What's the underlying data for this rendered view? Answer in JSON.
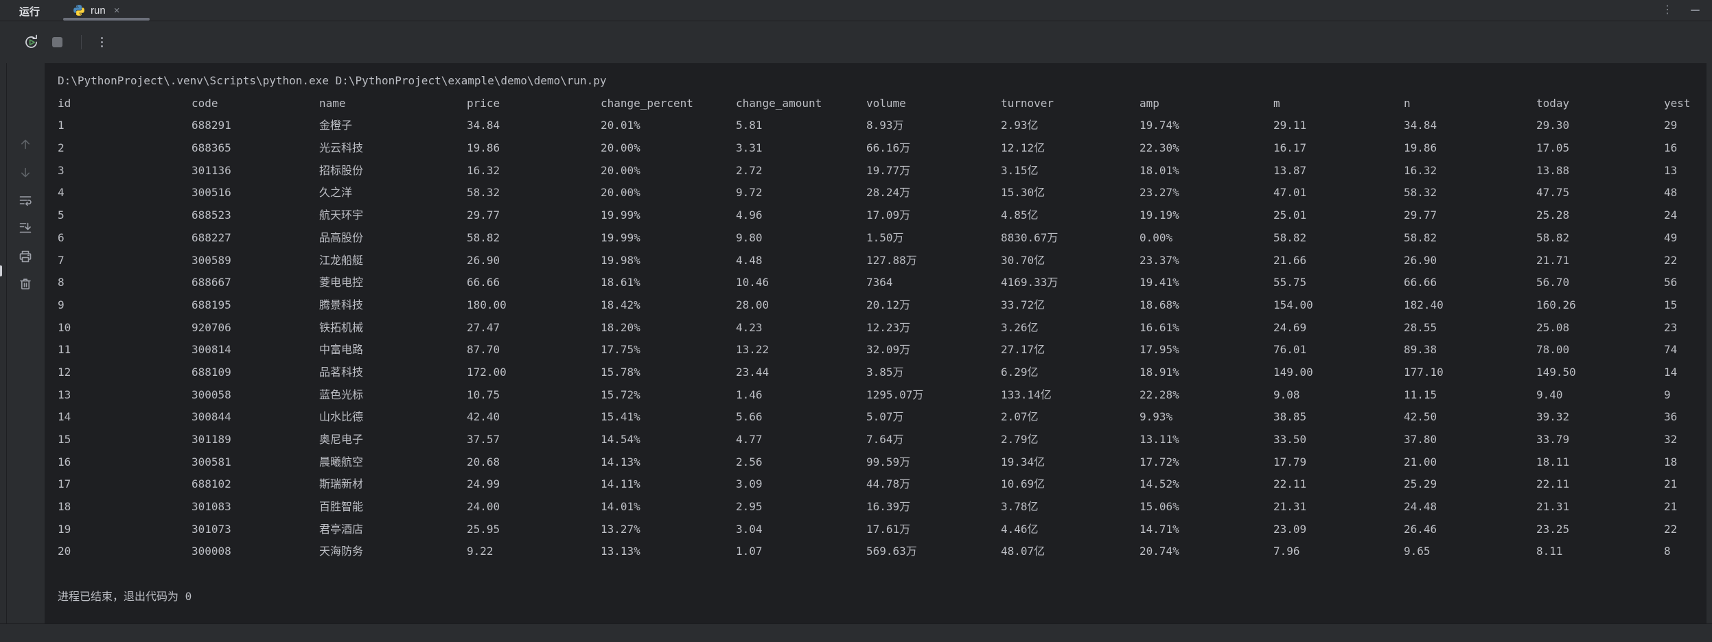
{
  "window": {
    "title": "运行",
    "tab_label": "run",
    "close_glyph": "×"
  },
  "console": {
    "command_line": "D:\\PythonProject\\.venv\\Scripts\\python.exe D:\\PythonProject\\example\\demo\\demo\\run.py",
    "exit_line": "进程已结束，退出代码为 0"
  },
  "table": {
    "columns": [
      "id",
      "code",
      "name",
      "price",
      "change_percent",
      "change_amount",
      "volume",
      "turnover",
      "amp",
      "m",
      "n",
      "today",
      "yest"
    ],
    "rows": [
      [
        "1",
        "688291",
        "金橙子",
        "34.84",
        "20.01%",
        "5.81",
        "8.93万",
        "2.93亿",
        "19.74%",
        "29.11",
        "34.84",
        "29.30",
        "29"
      ],
      [
        "2",
        "688365",
        "光云科技",
        "19.86",
        "20.00%",
        "3.31",
        "66.16万",
        "12.12亿",
        "22.30%",
        "16.17",
        "19.86",
        "17.05",
        "16"
      ],
      [
        "3",
        "301136",
        "招标股份",
        "16.32",
        "20.00%",
        "2.72",
        "19.77万",
        "3.15亿",
        "18.01%",
        "13.87",
        "16.32",
        "13.88",
        "13"
      ],
      [
        "4",
        "300516",
        "久之洋",
        "58.32",
        "20.00%",
        "9.72",
        "28.24万",
        "15.30亿",
        "23.27%",
        "47.01",
        "58.32",
        "47.75",
        "48"
      ],
      [
        "5",
        "688523",
        "航天环宇",
        "29.77",
        "19.99%",
        "4.96",
        "17.09万",
        "4.85亿",
        "19.19%",
        "25.01",
        "29.77",
        "25.28",
        "24"
      ],
      [
        "6",
        "688227",
        "品高股份",
        "58.82",
        "19.99%",
        "9.80",
        "1.50万",
        "8830.67万",
        "0.00%",
        "58.82",
        "58.82",
        "58.82",
        "49"
      ],
      [
        "7",
        "300589",
        "江龙船艇",
        "26.90",
        "19.98%",
        "4.48",
        "127.88万",
        "30.70亿",
        "23.37%",
        "21.66",
        "26.90",
        "21.71",
        "22"
      ],
      [
        "8",
        "688667",
        "菱电电控",
        "66.66",
        "18.61%",
        "10.46",
        "7364",
        "4169.33万",
        "19.41%",
        "55.75",
        "66.66",
        "56.70",
        "56"
      ],
      [
        "9",
        "688195",
        "腾景科技",
        "180.00",
        "18.42%",
        "28.00",
        "20.12万",
        "33.72亿",
        "18.68%",
        "154.00",
        "182.40",
        "160.26",
        "15"
      ],
      [
        "10",
        "920706",
        "铁拓机械",
        "27.47",
        "18.20%",
        "4.23",
        "12.23万",
        "3.26亿",
        "16.61%",
        "24.69",
        "28.55",
        "25.08",
        "23"
      ],
      [
        "11",
        "300814",
        "中富电路",
        "87.70",
        "17.75%",
        "13.22",
        "32.09万",
        "27.17亿",
        "17.95%",
        "76.01",
        "89.38",
        "78.00",
        "74"
      ],
      [
        "12",
        "688109",
        "品茗科技",
        "172.00",
        "15.78%",
        "23.44",
        "3.85万",
        "6.29亿",
        "18.91%",
        "149.00",
        "177.10",
        "149.50",
        "14"
      ],
      [
        "13",
        "300058",
        "蓝色光标",
        "10.75",
        "15.72%",
        "1.46",
        "1295.07万",
        "133.14亿",
        "22.28%",
        "9.08",
        "11.15",
        "9.40",
        "9"
      ],
      [
        "14",
        "300844",
        "山水比德",
        "42.40",
        "15.41%",
        "5.66",
        "5.07万",
        "2.07亿",
        "9.93%",
        "38.85",
        "42.50",
        "39.32",
        "36"
      ],
      [
        "15",
        "301189",
        "奥尼电子",
        "37.57",
        "14.54%",
        "4.77",
        "7.64万",
        "2.79亿",
        "13.11%",
        "33.50",
        "37.80",
        "33.79",
        "32"
      ],
      [
        "16",
        "300581",
        "晨曦航空",
        "20.68",
        "14.13%",
        "2.56",
        "99.59万",
        "19.34亿",
        "17.72%",
        "17.79",
        "21.00",
        "18.11",
        "18"
      ],
      [
        "17",
        "688102",
        "斯瑞新材",
        "24.99",
        "14.11%",
        "3.09",
        "44.78万",
        "10.69亿",
        "14.52%",
        "22.11",
        "25.29",
        "22.11",
        "21"
      ],
      [
        "18",
        "301083",
        "百胜智能",
        "24.00",
        "14.01%",
        "2.95",
        "16.39万",
        "3.78亿",
        "15.06%",
        "21.31",
        "24.48",
        "21.31",
        "21"
      ],
      [
        "19",
        "301073",
        "君亭酒店",
        "25.95",
        "13.27%",
        "3.04",
        "17.61万",
        "4.46亿",
        "14.71%",
        "23.09",
        "26.46",
        "23.25",
        "22"
      ],
      [
        "20",
        "300008",
        "天海防务",
        "9.22",
        "13.13%",
        "1.07",
        "569.63万",
        "48.07亿",
        "20.74%",
        "7.96",
        "9.65",
        "8.11",
        "8"
      ]
    ]
  },
  "colors": {
    "console_bg": "#1e1f22",
    "panel_bg": "#2b2d30",
    "console_text": "#bcbec4",
    "tab_text": "#dfe1e5",
    "icon_gray": "#9da0a8",
    "run_green": "#57965c",
    "python_blue": "#4b8bbe",
    "python_yellow": "#ffd43b"
  }
}
